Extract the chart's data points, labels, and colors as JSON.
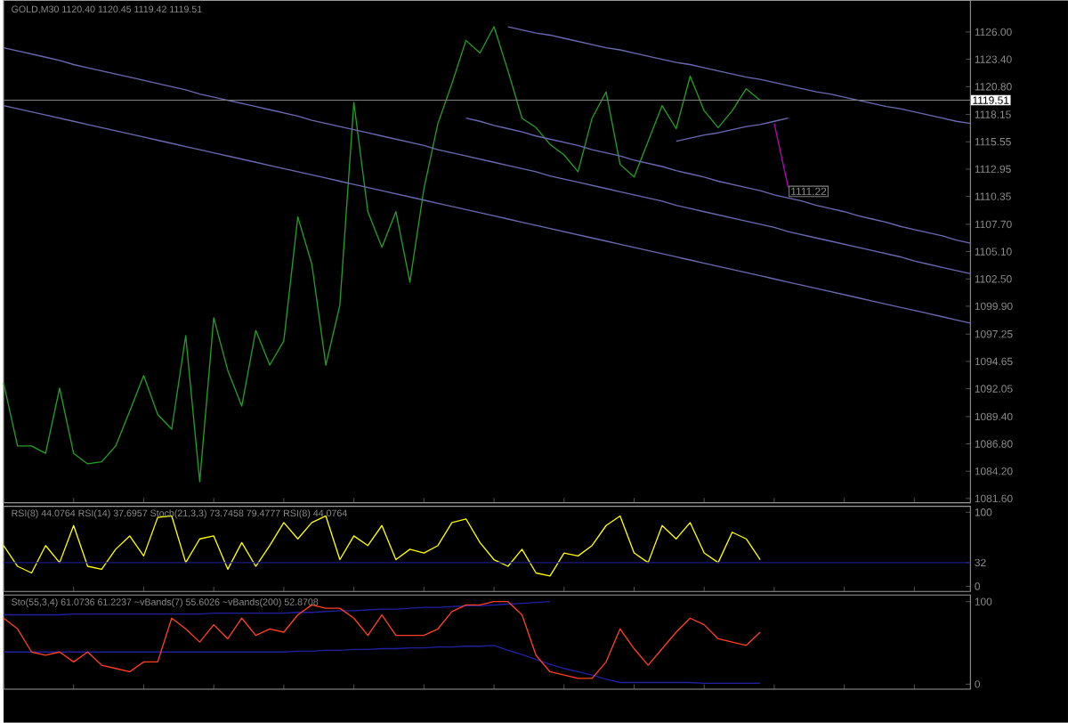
{
  "chart_data": [
    {
      "type": "line",
      "title": "GOLD,M30  1120.40 1120.45 1119.42 1119.51",
      "categories": [
        null,
        null,
        null,
        null,
        null,
        null,
        null,
        null,
        null,
        null,
        null,
        null,
        null,
        null,
        null,
        null,
        null,
        null,
        null,
        null,
        null,
        null,
        null,
        null,
        null,
        null,
        null,
        null,
        null,
        null,
        null,
        null,
        null,
        null,
        null,
        null,
        null,
        null,
        null,
        null,
        null,
        null,
        null,
        null,
        null,
        null,
        null,
        null,
        null,
        null,
        null,
        null,
        null,
        null,
        null,
        null,
        null,
        null,
        null,
        null,
        null,
        null,
        null,
        null,
        null,
        null,
        null,
        null,
        null,
        null
      ],
      "series": [
        {
          "color": "#22a022",
          "values": [
            1092.6,
            1086.6,
            1086.6,
            1085.9,
            1092.1,
            1085.9,
            1084.9,
            1085.1,
            1086.6,
            1089.9,
            1093.3,
            1089.6,
            1088.2,
            1097.1,
            1083.2,
            1098.8,
            1093.8,
            1090.4,
            1097.6,
            1094.3,
            1096.6,
            1108.4,
            1103.9,
            1094.3,
            1100.0,
            1119.3,
            1108.9,
            1105.5,
            1108.9,
            1102.2,
            1111.1,
            1117.3,
            1121.1,
            1125.2,
            1124.0,
            1126.5,
            1122.3,
            1117.8,
            1116.9,
            1115.3,
            1114.3,
            1112.7,
            1117.8,
            1120.3,
            1113.4,
            1112.2,
            1115.6,
            1119.0,
            1116.8,
            1121.8,
            1118.5,
            1116.9,
            1118.5,
            1120.6,
            1119.5,
            null,
            null,
            null,
            null,
            null,
            null,
            null,
            null,
            null,
            null,
            null,
            null,
            null,
            null,
            null
          ]
        },
        {
          "color": "#6a6ab0",
          "values": [
            null,
            null,
            null,
            null,
            null,
            null,
            null,
            null,
            null,
            null,
            null,
            null,
            null,
            null,
            null,
            null,
            null,
            null,
            null,
            null,
            null,
            null,
            null,
            null,
            null,
            null,
            null,
            null,
            null,
            null,
            null,
            null,
            null,
            null,
            null,
            null,
            1126.5,
            1126.2,
            1125.9,
            1125.7,
            1125.4,
            1125.1,
            1124.8,
            1124.5,
            1124.3,
            1124.0,
            1123.7,
            1123.4,
            1123.1,
            1122.9,
            1122.6,
            1122.3,
            1122.0,
            1121.7,
            1121.5,
            1121.2,
            1120.9,
            1120.6,
            1120.3,
            1120.1,
            1119.8,
            1119.5,
            1119.2,
            1118.9,
            1118.7,
            1118.4,
            1118.1,
            1117.8,
            1117.5,
            1117.3
          ]
        },
        {
          "color": "#6a6ab0",
          "values": [
            null,
            null,
            null,
            null,
            null,
            null,
            null,
            null,
            null,
            null,
            null,
            null,
            null,
            null,
            null,
            null,
            null,
            null,
            null,
            null,
            null,
            null,
            null,
            null,
            null,
            null,
            null,
            null,
            null,
            null,
            null,
            null,
            null,
            1117.8,
            1117.5,
            1117.1,
            1116.8,
            1116.5,
            1116.1,
            1115.8,
            1115.5,
            1115.2,
            1114.8,
            1114.5,
            1114.2,
            1113.8,
            1113.5,
            1113.2,
            1112.8,
            1112.5,
            1112.2,
            1111.8,
            1111.5,
            1111.2,
            1110.9,
            1110.5,
            1110.2,
            1109.9,
            1109.5,
            1109.2,
            1108.9,
            1108.5,
            1108.2,
            1107.9,
            1107.5,
            1107.2,
            1106.9,
            1106.6,
            1106.2,
            1105.9
          ]
        },
        {
          "color": "#6a6ab0",
          "values": [
            1124.5,
            1124.2,
            1123.9,
            1123.6,
            1123.3,
            1122.9,
            1122.6,
            1122.3,
            1122.0,
            1121.7,
            1121.4,
            1121.1,
            1120.8,
            1120.5,
            1120.1,
            1119.8,
            1119.5,
            1119.2,
            1118.9,
            1118.6,
            1118.3,
            1118.0,
            1117.6,
            1117.3,
            1117.0,
            1116.7,
            1116.4,
            1116.1,
            1115.8,
            1115.5,
            1115.2,
            1114.8,
            1114.5,
            1114.2,
            1113.9,
            1113.6,
            1113.3,
            1113.0,
            1112.7,
            1112.3,
            1112.0,
            1111.7,
            1111.4,
            1111.1,
            1110.8,
            1110.5,
            1110.2,
            1109.9,
            1109.5,
            1109.2,
            1108.9,
            1108.6,
            1108.3,
            1108.0,
            1107.7,
            1107.4,
            1107.0,
            1106.7,
            1106.4,
            1106.1,
            1105.8,
            1105.5,
            1105.2,
            1104.9,
            1104.6,
            1104.2,
            1103.9,
            1103.6,
            1103.3,
            1103.0
          ]
        },
        {
          "color": "#6a6ab0",
          "values": [
            1119.0,
            1118.7,
            1118.4,
            1118.1,
            1117.8,
            1117.5,
            1117.2,
            1116.9,
            1116.6,
            1116.3,
            1116.0,
            1115.7,
            1115.4,
            1115.1,
            1114.8,
            1114.5,
            1114.2,
            1113.9,
            1113.6,
            1113.3,
            1113.0,
            1112.7,
            1112.4,
            1112.1,
            1111.8,
            1111.5,
            1111.2,
            1110.9,
            1110.6,
            1110.3,
            1110.0,
            1109.7,
            1109.4,
            1109.1,
            1108.8,
            1108.5,
            1108.2,
            1107.9,
            1107.6,
            1107.3,
            1107.0,
            1106.7,
            1106.4,
            1106.1,
            1105.8,
            1105.5,
            1105.2,
            1104.9,
            1104.6,
            1104.3,
            1104.0,
            1103.7,
            1103.4,
            1103.1,
            1102.8,
            1102.5,
            1102.2,
            1101.9,
            1101.6,
            1101.3,
            1101.0,
            1100.7,
            1100.4,
            1100.1,
            1099.8,
            1099.5,
            1099.2,
            1098.9,
            1098.6,
            1098.3
          ]
        },
        {
          "color": "#6a6ab0",
          "values": [
            null,
            null,
            null,
            null,
            null,
            null,
            null,
            null,
            null,
            null,
            null,
            null,
            null,
            null,
            null,
            null,
            null,
            null,
            null,
            null,
            null,
            null,
            null,
            null,
            null,
            null,
            null,
            null,
            null,
            null,
            null,
            null,
            null,
            null,
            null,
            null,
            null,
            null,
            null,
            null,
            null,
            null,
            null,
            null,
            null,
            null,
            null,
            null,
            1115.6,
            1115.9,
            1116.2,
            1116.4,
            1116.7,
            1117.0,
            1117.2,
            1117.5,
            1117.8,
            null,
            null,
            null,
            null,
            null,
            null,
            null,
            null,
            null,
            null,
            null,
            null,
            null
          ]
        },
        {
          "color": "#c000c0",
          "values": [
            null,
            null,
            null,
            null,
            null,
            null,
            null,
            null,
            null,
            null,
            null,
            null,
            null,
            null,
            null,
            null,
            null,
            null,
            null,
            null,
            null,
            null,
            null,
            null,
            null,
            null,
            null,
            null,
            null,
            null,
            null,
            null,
            null,
            null,
            null,
            null,
            null,
            null,
            null,
            null,
            null,
            null,
            null,
            null,
            null,
            null,
            null,
            null,
            null,
            null,
            null,
            null,
            null,
            null,
            null,
            1117.3,
            1111.2,
            null,
            null,
            null,
            null,
            null,
            null,
            null,
            null,
            null,
            null,
            null,
            null,
            null
          ]
        }
      ],
      "ylim": [
        1081.2,
        1129.0
      ],
      "yticks": [
        {
          "value": 1081.6,
          "label": "1081.60"
        },
        {
          "value": 1084.2,
          "label": "1084.20"
        },
        {
          "value": 1086.8,
          "label": "1086.80"
        },
        {
          "value": 1089.4,
          "label": "1089.40"
        },
        {
          "value": 1092.05,
          "label": "1092.05"
        },
        {
          "value": 1094.65,
          "label": "1094.65"
        },
        {
          "value": 1097.25,
          "label": "1097.25"
        },
        {
          "value": 1099.9,
          "label": "1099.90"
        },
        {
          "value": 1102.5,
          "label": "1102.50"
        },
        {
          "value": 1105.1,
          "label": "1105.10"
        },
        {
          "value": 1107.7,
          "label": "1107.70"
        },
        {
          "value": 1110.35,
          "label": "1110.35"
        },
        {
          "value": 1112.95,
          "label": "1112.95"
        },
        {
          "value": 1115.55,
          "label": "1115.55"
        },
        {
          "value": 1118.15,
          "label": "1118.15"
        },
        {
          "value": 1120.8,
          "label": "1120.80"
        },
        {
          "value": 1123.4,
          "label": "1123.40"
        },
        {
          "value": 1126,
          "label": "1126.00"
        }
      ],
      "ref_lines": [
        {
          "axis": "y",
          "value": 1119.51,
          "label": "1119.51",
          "color": "#808080"
        }
      ],
      "annotations": [
        "1111.22"
      ],
      "tick_labels": "y"
    },
    {
      "type": "line",
      "title": "RSI(8) 44.0764 RSI(14) 37.6957 Stoch(21,3,3) 73.7458 79.4777 RSI(8) 44.0764",
      "categories": [
        null,
        null,
        null,
        null,
        null,
        null,
        null,
        null,
        null,
        null,
        null,
        null,
        null,
        null,
        null,
        null,
        null,
        null,
        null,
        null,
        null,
        null,
        null,
        null,
        null,
        null,
        null,
        null,
        null,
        null,
        null,
        null,
        null,
        null,
        null,
        null,
        null,
        null,
        null,
        null,
        null,
        null,
        null,
        null,
        null,
        null,
        null,
        null,
        null,
        null,
        null,
        null,
        null,
        null,
        null,
        null,
        null,
        null,
        null,
        null,
        null,
        null,
        null,
        null,
        null,
        null,
        null,
        null,
        null,
        null
      ],
      "series": [
        {
          "color": "#ffff00",
          "values": [
            55,
            27,
            18,
            55,
            32,
            82,
            27,
            23,
            50,
            68,
            41,
            93,
            95,
            32,
            64,
            68,
            23,
            59,
            27,
            55,
            86,
            64,
            86,
            95,
            36,
            68,
            55,
            82,
            36,
            50,
            45,
            55,
            86,
            91,
            59,
            36,
            27,
            50,
            18,
            14,
            45,
            41,
            55,
            82,
            95,
            45,
            32,
            82,
            64,
            86,
            45,
            32,
            73,
            64,
            36,
            null,
            null,
            null,
            null,
            null,
            null,
            null,
            null,
            null,
            null,
            null,
            null,
            null,
            null,
            null
          ]
        }
      ],
      "ylim": [
        -7,
        108
      ],
      "yticks": [
        0,
        32,
        100
      ],
      "ref_lines": [
        {
          "axis": "y",
          "value": 32,
          "color": "#1a1a80"
        }
      ],
      "tick_labels": "y"
    },
    {
      "type": "line",
      "title": "Sto(55,3,4) 61.0736 61.2237 ~vBands(7) 55.6026 ~vBands(200) 52.8708",
      "categories": [
        null,
        null,
        null,
        null,
        null,
        null,
        null,
        null,
        null,
        null,
        null,
        null,
        null,
        null,
        null,
        null,
        null,
        null,
        null,
        null,
        null,
        null,
        null,
        null,
        null,
        null,
        null,
        null,
        null,
        null,
        null,
        null,
        null,
        null,
        null,
        null,
        null,
        null,
        null,
        null,
        null,
        null,
        null,
        null,
        null,
        null,
        null,
        null,
        null,
        null,
        null,
        null,
        null,
        null,
        null,
        null,
        null,
        null,
        null,
        null,
        null,
        null,
        null,
        null,
        null,
        null,
        null,
        null,
        null,
        null
      ],
      "series": [
        {
          "color": "#2020a0",
          "values": [
            84,
            84,
            84,
            84,
            84,
            85,
            85,
            85,
            85,
            85,
            85,
            85,
            85,
            85,
            85,
            86,
            86,
            86,
            86,
            86,
            86,
            87,
            87,
            88,
            89,
            89,
            90,
            91,
            91,
            92,
            93,
            93,
            94,
            95,
            95,
            96,
            97,
            98,
            99,
            100,
            null,
            null,
            null,
            null,
            null,
            null,
            null,
            null,
            null,
            null,
            null,
            null,
            null,
            null,
            null,
            null,
            null,
            null,
            null,
            null,
            null,
            null,
            null,
            null,
            null,
            null,
            null,
            null,
            null,
            null
          ]
        },
        {
          "color": "#2020a0",
          "values": [
            39,
            39,
            39,
            39,
            39,
            39,
            39,
            39,
            39,
            39,
            39,
            39,
            39,
            39,
            39,
            39,
            39,
            39,
            39,
            39,
            39,
            40,
            40,
            41,
            41,
            42,
            42,
            43,
            43,
            44,
            44,
            45,
            45,
            46,
            46,
            47,
            41,
            36,
            30,
            24,
            19,
            15,
            11,
            6,
            2,
            2,
            2,
            2,
            2,
            2,
            1,
            1,
            1,
            1,
            1,
            null,
            null,
            null,
            null,
            null,
            null,
            null,
            null,
            null,
            null,
            null,
            null,
            null,
            null,
            null
          ]
        },
        {
          "color": "#ff4020",
          "values": [
            80,
            67,
            39,
            35,
            39,
            27,
            39,
            23,
            19,
            15,
            27,
            27,
            80,
            67,
            51,
            72,
            55,
            80,
            59,
            67,
            63,
            84,
            96,
            92,
            92,
            80,
            59,
            84,
            59,
            59,
            59,
            67,
            88,
            96,
            96,
            100,
            100,
            84,
            35,
            15,
            11,
            7,
            7,
            27,
            67,
            43,
            23,
            43,
            63,
            80,
            72,
            55,
            51,
            47,
            63,
            null,
            null,
            null,
            null,
            null,
            null,
            null,
            null,
            null,
            null,
            null,
            null,
            null,
            null,
            null
          ]
        }
      ],
      "ylim": [
        -6,
        108
      ],
      "yticks": [
        0,
        100
      ],
      "tick_labels": "y"
    }
  ]
}
